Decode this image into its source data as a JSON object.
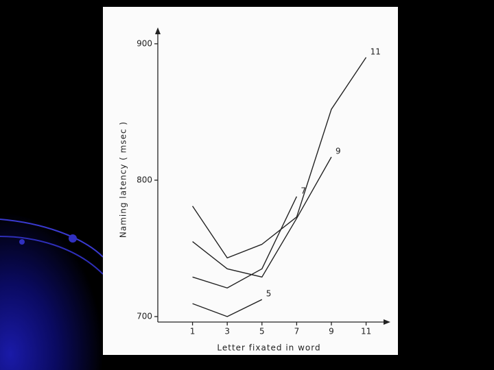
{
  "chart_data": {
    "type": "line",
    "x_label": "Letter fixated in word",
    "y_label": "Naming latency ( msec )",
    "xlim": [
      -1,
      12.4
    ],
    "ylim": [
      696,
      912
    ],
    "xticks": [
      1,
      3,
      5,
      7,
      9,
      11
    ],
    "yticks": [
      700,
      800,
      900
    ],
    "series": [
      {
        "name": "5",
        "color": "#222222",
        "x": [
          1,
          3,
          5
        ],
        "values": [
          709.5,
          700,
          712.5
        ]
      },
      {
        "name": "7",
        "color": "#222222",
        "x": [
          1,
          3,
          5,
          7
        ],
        "values": [
          729,
          721,
          735,
          788
        ]
      },
      {
        "name": "9",
        "color": "#222222",
        "x": [
          1,
          3,
          5,
          7,
          9
        ],
        "values": [
          755,
          735,
          729,
          772,
          817
        ]
      },
      {
        "name": "11",
        "color": "#222222",
        "x": [
          1,
          3,
          5,
          7,
          9,
          11
        ],
        "values": [
          781,
          743,
          753,
          773,
          852,
          890
        ]
      }
    ]
  }
}
